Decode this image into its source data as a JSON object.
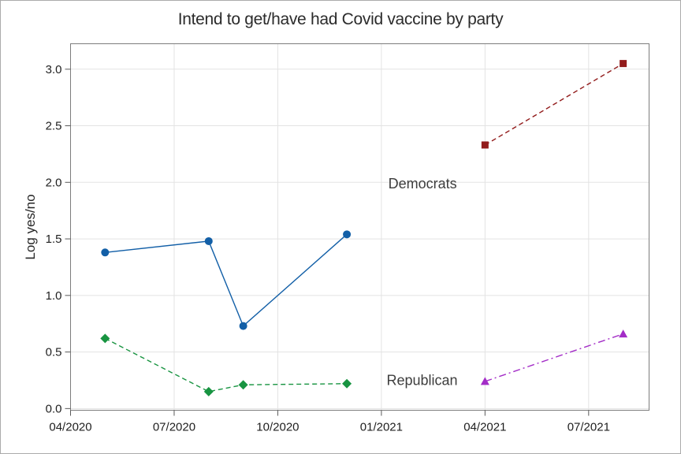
{
  "chart_data": {
    "type": "line",
    "title": "Intend to get/have had Covid vaccine by party",
    "xlabel": "",
    "ylabel": "Log yes/no",
    "grid": true,
    "legend": "none",
    "x_axis": {
      "tick_labels": [
        "04/2020",
        "07/2020",
        "10/2020",
        "01/2021",
        "04/2021",
        "07/2021"
      ],
      "tick_positions_months": [
        0,
        3,
        6,
        9,
        12,
        15
      ],
      "range_months": [
        0,
        16.75
      ]
    },
    "y_axis": {
      "tick_labels": [
        "0.0",
        "0.5",
        "1.0",
        "1.5",
        "2.0",
        "2.5",
        "3.0"
      ],
      "tick_values": [
        0,
        0.5,
        1,
        1.5,
        2,
        2.5,
        3
      ],
      "range": [
        -0.015,
        3.225
      ]
    },
    "series": [
      {
        "id": "democrats-2020",
        "group": "Democrats",
        "marker": "circle",
        "line_style": "solid",
        "color": "#125fa7",
        "points": [
          {
            "date": "05/2020",
            "month": 1,
            "value": 1.38
          },
          {
            "date": "08/2020",
            "month": 4,
            "value": 1.48
          },
          {
            "date": "09/2020",
            "month": 5,
            "value": 0.73
          },
          {
            "date": "12/2020",
            "month": 8,
            "value": 1.54
          }
        ]
      },
      {
        "id": "democrats-2021",
        "group": "Democrats",
        "marker": "square",
        "line_style": "dashed",
        "color": "#921b1b",
        "points": [
          {
            "date": "04/2021",
            "month": 12,
            "value": 2.33
          },
          {
            "date": "08/2021",
            "month": 16,
            "value": 3.05
          }
        ]
      },
      {
        "id": "republican-2020",
        "group": "Republican",
        "marker": "diamond",
        "line_style": "dashed",
        "color": "#189441",
        "points": [
          {
            "date": "05/2020",
            "month": 1,
            "value": 0.62
          },
          {
            "date": "08/2020",
            "month": 4,
            "value": 0.15
          },
          {
            "date": "09/2020",
            "month": 5,
            "value": 0.21
          },
          {
            "date": "12/2020",
            "month": 8,
            "value": 0.22
          }
        ]
      },
      {
        "id": "republican-2021",
        "group": "Republican",
        "marker": "triangle",
        "line_style": "dash-dot",
        "color": "#a32cc7",
        "points": [
          {
            "date": "04/2021",
            "month": 12,
            "value": 0.24
          },
          {
            "date": "08/2021",
            "month": 16,
            "value": 0.66
          }
        ]
      }
    ],
    "annotations": [
      {
        "text": "Democrats",
        "month": 9.2,
        "value": 1.98
      },
      {
        "text": "Republican",
        "month": 9.15,
        "value": 0.24
      }
    ]
  }
}
